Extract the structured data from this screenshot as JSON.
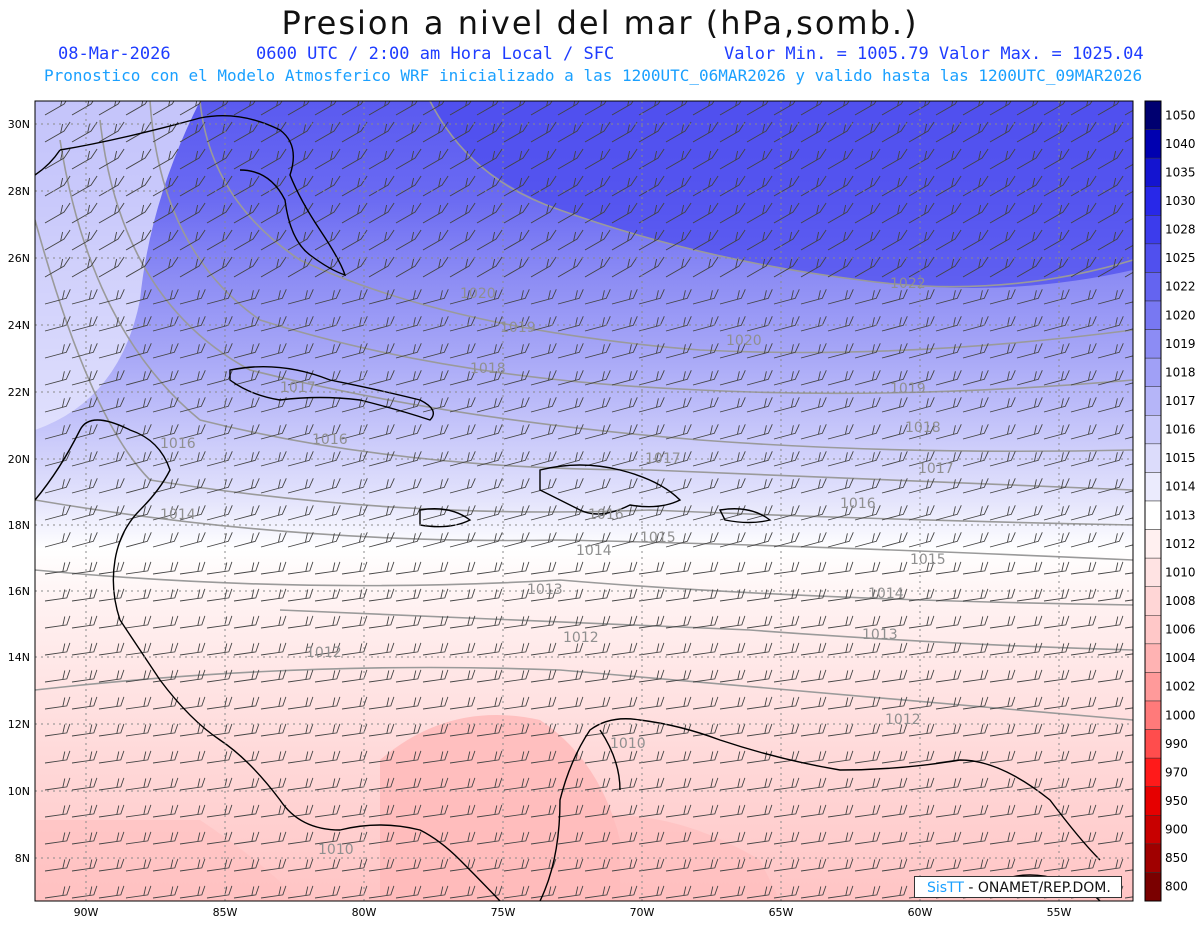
{
  "title": "Presion a nivel del mar (hPa,somb.)",
  "header": {
    "date": "08-Mar-2026",
    "time": "0600 UTC / 2:00 am Hora Local / SFC",
    "minmax": "Valor Min. = 1005.79  Valor Max. = 1025.04",
    "forecast": "Pronostico con el Modelo Atmosferico WRF inicializado a las 1200UTC_06MAR2026 y valido hasta las  1200UTC_09MAR2026"
  },
  "colorbar": {
    "levels": [
      "800",
      "850",
      "900",
      "950",
      "970",
      "990",
      "1000",
      "1002",
      "1004",
      "1006",
      "1008",
      "1010",
      "1012",
      "1013",
      "1014",
      "1015",
      "1016",
      "1017",
      "1018",
      "1019",
      "1020",
      "1022",
      "1025",
      "1028",
      "1030",
      "1035",
      "1040",
      "1050"
    ],
    "colors": [
      "#7a0000",
      "#a00000",
      "#c80000",
      "#e60000",
      "#ff1a1a",
      "#ff4d4d",
      "#ff7a7a",
      "#ff9a9a",
      "#ffb3b3",
      "#ffc8c8",
      "#ffd6d6",
      "#ffe3e3",
      "#fff0f0",
      "#ffffff",
      "#ebebfd",
      "#dcdcfb",
      "#c9c9fa",
      "#b5b5f8",
      "#a0a0f6",
      "#8c8cf4",
      "#7878f2",
      "#6464f0",
      "#5050ee",
      "#3c3cec",
      "#2828e8",
      "#1414d0",
      "#0000b0",
      "#000070"
    ]
  },
  "axes": {
    "lat_labels": [
      "30N",
      "28N",
      "26N",
      "24N",
      "22N",
      "20N",
      "18N",
      "16N",
      "14N",
      "12N",
      "10N",
      "8N"
    ],
    "lon_labels": [
      "90W",
      "85W",
      "80W",
      "75W",
      "70W",
      "65W",
      "60W",
      "55W"
    ]
  },
  "isobar_labels": [
    {
      "text": "1022"
    },
    {
      "text": "1020"
    },
    {
      "text": "1020"
    },
    {
      "text": "1019"
    },
    {
      "text": "1019"
    },
    {
      "text": "1018"
    },
    {
      "text": "1018"
    },
    {
      "text": "1017"
    },
    {
      "text": "1017"
    },
    {
      "text": "1017"
    },
    {
      "text": "1016"
    },
    {
      "text": "1016"
    },
    {
      "text": "1016"
    },
    {
      "text": "1016"
    },
    {
      "text": "1015"
    },
    {
      "text": "1015"
    },
    {
      "text": "1014"
    },
    {
      "text": "1014"
    },
    {
      "text": "1014"
    },
    {
      "text": "1013"
    },
    {
      "text": "1013"
    },
    {
      "text": "1012"
    },
    {
      "text": "1012"
    },
    {
      "text": "1012"
    },
    {
      "text": "1010"
    },
    {
      "text": "1010"
    }
  ],
  "logo": {
    "brand": "SisTT",
    "org": "- ONAMET/REP.DOM."
  }
}
